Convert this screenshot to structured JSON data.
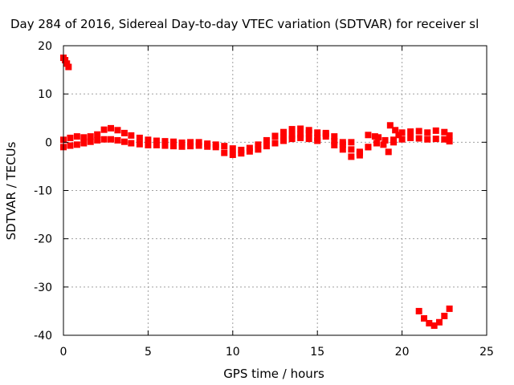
{
  "chart_data": {
    "type": "scatter",
    "title": "Day 284 of 2016, Sidereal Day-to-day VTEC variation (SDTVAR) for receiver sl",
    "xlabel": "GPS time / hours",
    "ylabel": "SDTVAR / TECUs",
    "xlim": [
      0,
      25
    ],
    "ylim": [
      -40,
      20
    ],
    "xticks": [
      "0",
      "5",
      "10",
      "15",
      "20",
      "25"
    ],
    "yticks": [
      "20",
      "10",
      "0",
      "-10",
      "-20",
      "-30",
      "-40"
    ],
    "grid": true,
    "legend": "none",
    "series_color": "#ff0000",
    "series": [
      {
        "values": [
          [
            0.0,
            17.5
          ],
          [
            0.1,
            17.0
          ],
          [
            0.2,
            16.3
          ],
          [
            0.3,
            15.6
          ],
          [
            0.0,
            0.5
          ],
          [
            0.4,
            0.9
          ],
          [
            0.8,
            1.2
          ],
          [
            1.2,
            1.0
          ],
          [
            1.6,
            1.2
          ],
          [
            2.0,
            1.6
          ],
          [
            2.4,
            2.6
          ],
          [
            2.8,
            2.9
          ],
          [
            3.2,
            2.5
          ],
          [
            3.6,
            1.9
          ],
          [
            4.0,
            1.4
          ],
          [
            4.5,
            0.9
          ],
          [
            5.0,
            0.5
          ],
          [
            5.5,
            0.3
          ],
          [
            6.0,
            0.2
          ],
          [
            6.5,
            0.1
          ],
          [
            7.0,
            -0.1
          ],
          [
            7.5,
            0.0
          ],
          [
            8.0,
            0.0
          ],
          [
            8.5,
            -0.3
          ],
          [
            9.0,
            -0.5
          ],
          [
            0.0,
            -1.0
          ],
          [
            0.4,
            -0.7
          ],
          [
            0.8,
            -0.5
          ],
          [
            1.2,
            -0.2
          ],
          [
            1.6,
            0.1
          ],
          [
            2.0,
            0.4
          ],
          [
            2.4,
            0.6
          ],
          [
            2.8,
            0.6
          ],
          [
            3.2,
            0.4
          ],
          [
            3.6,
            0.1
          ],
          [
            4.0,
            -0.2
          ],
          [
            4.5,
            -0.4
          ],
          [
            5.0,
            -0.6
          ],
          [
            5.5,
            -0.6
          ],
          [
            6.0,
            -0.7
          ],
          [
            6.5,
            -0.8
          ],
          [
            7.0,
            -0.9
          ],
          [
            7.5,
            -0.8
          ],
          [
            8.0,
            -0.7
          ],
          [
            8.5,
            -0.9
          ],
          [
            9.0,
            -1.0
          ],
          [
            9.5,
            -0.8
          ],
          [
            10.0,
            -1.3
          ],
          [
            10.5,
            -1.6
          ],
          [
            11.0,
            -1.2
          ],
          [
            11.5,
            -0.5
          ],
          [
            12.0,
            0.4
          ],
          [
            12.5,
            1.3
          ],
          [
            13.0,
            2.1
          ],
          [
            13.5,
            2.7
          ],
          [
            14.0,
            2.8
          ],
          [
            14.5,
            2.5
          ],
          [
            15.0,
            2.0
          ],
          [
            15.5,
            1.7
          ],
          [
            16.0,
            1.2
          ],
          [
            16.5,
            0.0
          ],
          [
            17.0,
            -1.5
          ],
          [
            17.5,
            -2.7
          ],
          [
            18.0,
            -1.0
          ],
          [
            18.4,
            1.2
          ],
          [
            18.6,
            1.0
          ],
          [
            18.9,
            -0.5
          ],
          [
            19.2,
            -2.0
          ],
          [
            19.5,
            0.0
          ],
          [
            19.8,
            1.5
          ],
          [
            20.0,
            2.0
          ],
          [
            20.5,
            2.2
          ],
          [
            21.0,
            2.3
          ],
          [
            21.5,
            2.0
          ],
          [
            22.0,
            2.4
          ],
          [
            22.5,
            2.1
          ],
          [
            22.8,
            1.4
          ],
          [
            9.5,
            -2.2
          ],
          [
            10.0,
            -2.6
          ],
          [
            10.5,
            -2.3
          ],
          [
            11.0,
            -1.9
          ],
          [
            11.5,
            -1.5
          ],
          [
            12.0,
            -0.8
          ],
          [
            12.5,
            -0.2
          ],
          [
            13.0,
            0.3
          ],
          [
            13.5,
            0.7
          ],
          [
            14.0,
            0.9
          ],
          [
            14.5,
            0.7
          ],
          [
            15.0,
            0.9
          ],
          [
            15.5,
            1.2
          ],
          [
            16.0,
            0.2
          ],
          [
            16.5,
            -1.5
          ],
          [
            17.0,
            -3.0
          ],
          [
            17.5,
            -2.0
          ],
          [
            18.0,
            -1.0
          ],
          [
            18.5,
            -0.2
          ],
          [
            19.0,
            0.4
          ],
          [
            19.5,
            0.5
          ],
          [
            20.0,
            0.6
          ],
          [
            20.5,
            0.9
          ],
          [
            21.0,
            0.8
          ],
          [
            21.5,
            0.6
          ],
          [
            22.0,
            0.7
          ],
          [
            22.5,
            0.6
          ],
          [
            22.8,
            0.2
          ],
          [
            12.5,
            1.2
          ],
          [
            13.0,
            1.0
          ],
          [
            13.5,
            1.4
          ],
          [
            14.0,
            1.6
          ],
          [
            14.5,
            1.9
          ],
          [
            15.0,
            0.3
          ],
          [
            15.5,
            1.9
          ],
          [
            16.0,
            -0.6
          ],
          [
            16.5,
            -0.5
          ],
          [
            17.0,
            0.0
          ],
          [
            17.5,
            -2.2
          ],
          [
            18.0,
            1.5
          ],
          [
            19.3,
            3.5
          ],
          [
            19.6,
            2.5
          ],
          [
            21.0,
            -35.0
          ],
          [
            21.3,
            -36.5
          ],
          [
            21.6,
            -37.5
          ],
          [
            21.9,
            -38.0
          ],
          [
            22.2,
            -37.3
          ],
          [
            22.5,
            -36.0
          ],
          [
            22.8,
            -34.5
          ]
        ]
      }
    ]
  }
}
